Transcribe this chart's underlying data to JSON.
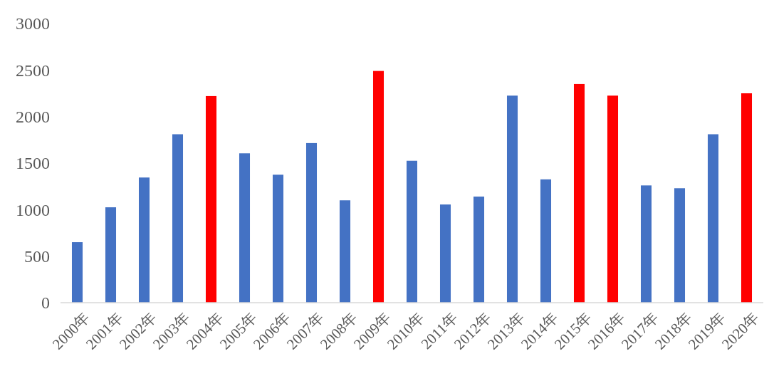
{
  "chart_data": {
    "type": "bar",
    "categories": [
      "2000年",
      "2001年",
      "2002年",
      "2003年",
      "2004年",
      "2005年",
      "2006年",
      "2007年",
      "2008年",
      "2009年",
      "2010年",
      "2011年",
      "2012年",
      "2013年",
      "2014年",
      "2015年",
      "2016年",
      "2017年",
      "2018年",
      "2019年",
      "2020年"
    ],
    "values": [
      650,
      1025,
      1345,
      1810,
      2220,
      1605,
      1375,
      1715,
      1100,
      2490,
      1525,
      1055,
      1140,
      2225,
      1325,
      2350,
      2225,
      1260,
      1230,
      1810,
      2250
    ],
    "colors": [
      "#4472c4",
      "#4472c4",
      "#4472c4",
      "#4472c4",
      "#ff0000",
      "#4472c4",
      "#4472c4",
      "#4472c4",
      "#4472c4",
      "#ff0000",
      "#4472c4",
      "#4472c4",
      "#4472c4",
      "#4472c4",
      "#4472c4",
      "#ff0000",
      "#ff0000",
      "#4472c4",
      "#4472c4",
      "#4472c4",
      "#ff0000"
    ],
    "ylim": [
      0,
      3000
    ],
    "yticks": [
      0,
      500,
      1000,
      1500,
      2000,
      2500,
      3000
    ],
    "grid": false
  }
}
